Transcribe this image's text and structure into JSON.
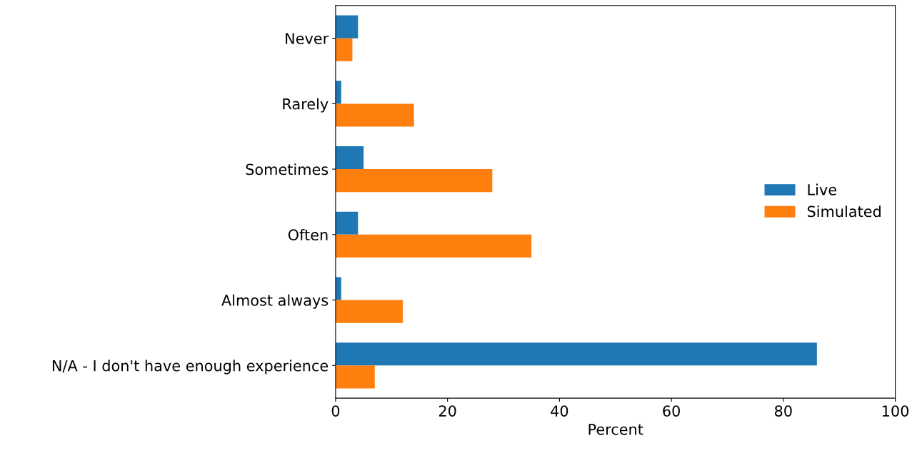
{
  "chart_data": {
    "type": "bar",
    "orientation": "horizontal",
    "xlabel": "Percent",
    "categories": [
      "Never",
      "Rarely",
      "Sometimes",
      "Often",
      "Almost always",
      "N/A - I don't have enough experience"
    ],
    "series": [
      {
        "name": "Live",
        "color": "#1f77b4",
        "values": [
          4,
          1,
          5,
          4,
          1,
          86
        ]
      },
      {
        "name": "Simulated",
        "color": "#ff7f0e",
        "values": [
          3,
          14,
          28,
          35,
          12,
          7
        ]
      }
    ],
    "xlim": [
      0,
      100
    ],
    "xticks": [
      0,
      20,
      40,
      60,
      80,
      100
    ],
    "grid": false,
    "legend": "right"
  }
}
